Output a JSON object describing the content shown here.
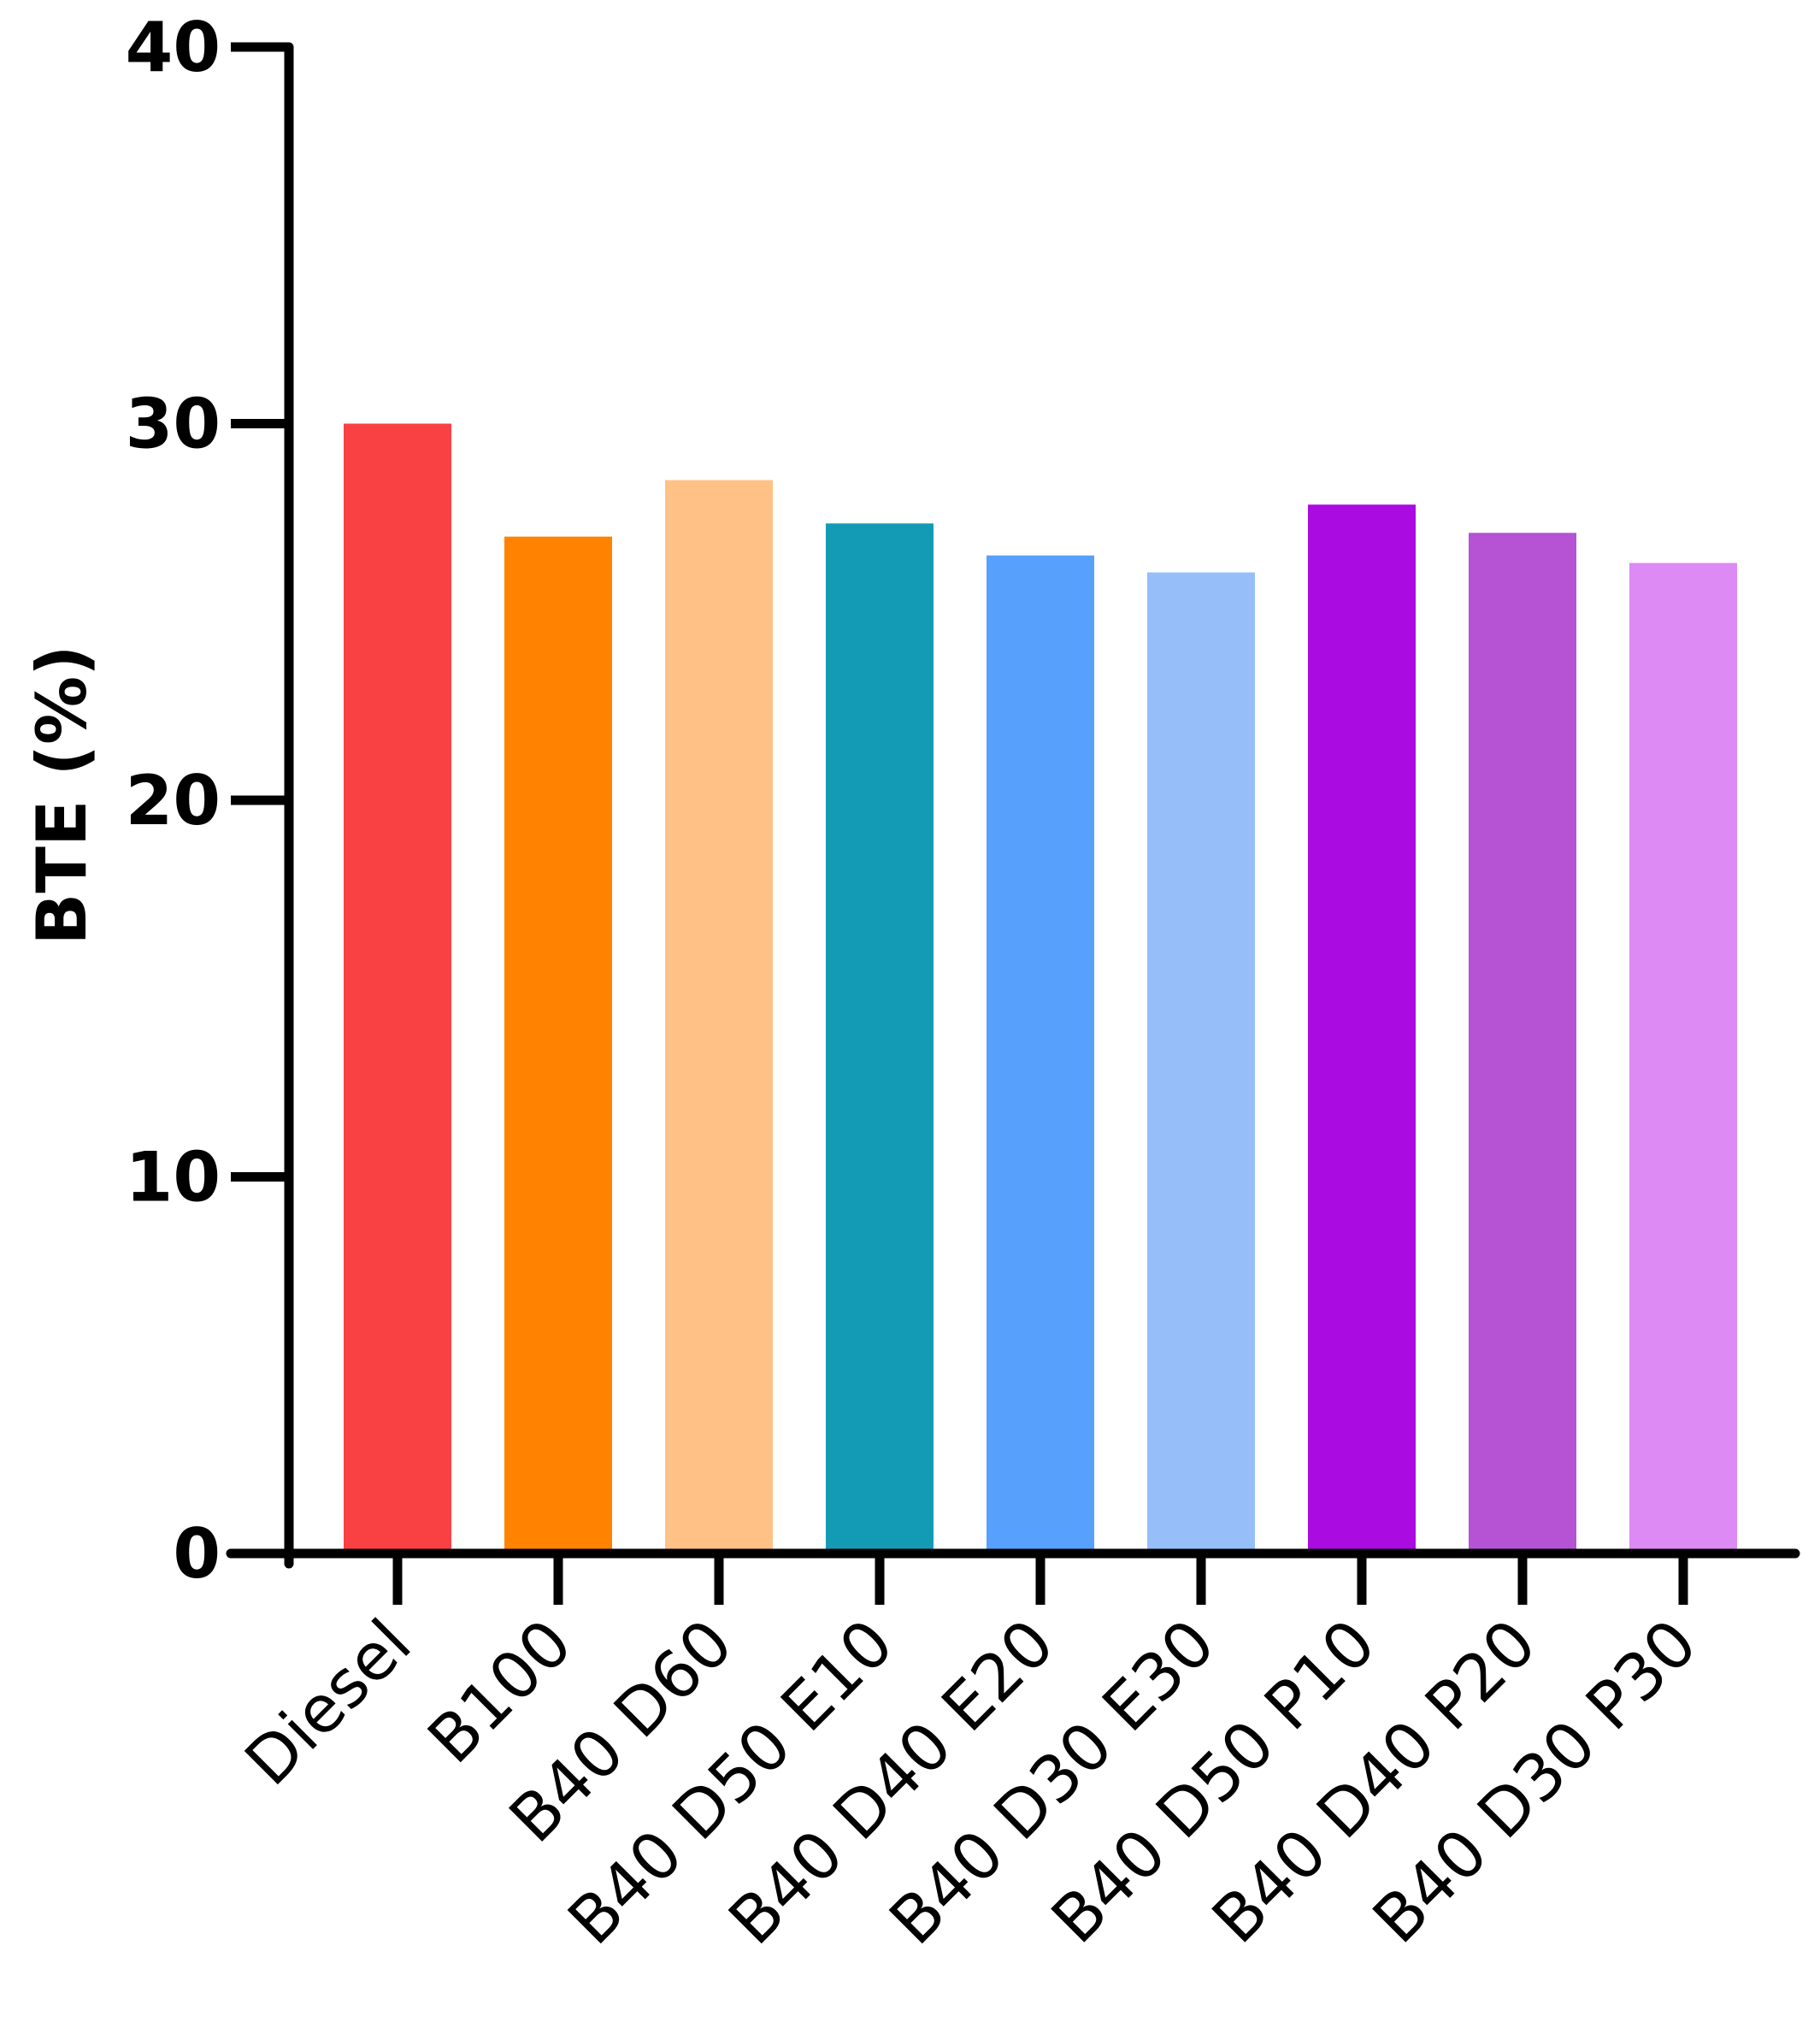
{
  "chart_data": {
    "type": "bar",
    "title": "",
    "xlabel": "",
    "ylabel": "BTE (%)",
    "ylim": [
      0,
      40
    ],
    "yticks": [
      0,
      10,
      20,
      30,
      40
    ],
    "grid": false,
    "legend": "none",
    "categories": [
      "Diesel",
      "B100",
      "B40 D60",
      "B40 D50 E10",
      "B40 D40 E20",
      "B40 D30 E30",
      "B40 D50 P10",
      "B40 D40 P20",
      "B40 D30 P30"
    ],
    "values": [
      30.0,
      27.0,
      28.5,
      27.35,
      26.5,
      26.05,
      27.85,
      27.1,
      26.3
    ],
    "colors": [
      "#f94144",
      "#ff8200",
      "#ffc185",
      "#139bb6",
      "#57a0fc",
      "#96bffa",
      "#aa0be0",
      "#b553d4",
      "#dd8af5"
    ]
  }
}
